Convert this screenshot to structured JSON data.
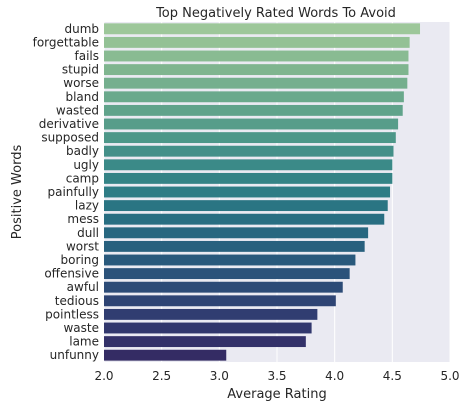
{
  "chart_data": {
    "type": "bar",
    "orientation": "horizontal",
    "title": "Top Negatively Rated Words To Avoid",
    "xlabel": "Average Rating",
    "ylabel": "Positive Words",
    "xlim": [
      2.0,
      5.0
    ],
    "xticks": [
      "2.0",
      "2.5",
      "3.0",
      "3.5",
      "4.0",
      "4.5",
      "5.0"
    ],
    "grid": true,
    "categories": [
      "dumb",
      "forgettable",
      "fails",
      "stupid",
      "worse",
      "bland",
      "wasted",
      "derivative",
      "supposed",
      "badly",
      "ugly",
      "camp",
      "painfully",
      "lazy",
      "mess",
      "dull",
      "worst",
      "boring",
      "offensive",
      "awful",
      "tedious",
      "pointless",
      "waste",
      "lame",
      "unfunny"
    ],
    "values": [
      4.74,
      4.65,
      4.64,
      4.64,
      4.63,
      4.6,
      4.59,
      4.55,
      4.53,
      4.51,
      4.5,
      4.5,
      4.48,
      4.46,
      4.43,
      4.29,
      4.26,
      4.18,
      4.13,
      4.07,
      4.01,
      3.85,
      3.8,
      3.75,
      3.06
    ],
    "colors": [
      "#9dc79a",
      "#93c195",
      "#89bb92",
      "#7fb58f",
      "#75af8e",
      "#6aa98c",
      "#60a38b",
      "#579d8a",
      "#4d9789",
      "#449089",
      "#3b8a88",
      "#348386",
      "#2e7c85",
      "#2a7583",
      "#286e82",
      "#276780",
      "#28607e",
      "#29597c",
      "#2b527a",
      "#2c4b77",
      "#2e4474",
      "#303d71",
      "#31376d",
      "#333169",
      "#342c64"
    ],
    "background": "#eaeaf2",
    "grid_color": "#ffffff"
  }
}
